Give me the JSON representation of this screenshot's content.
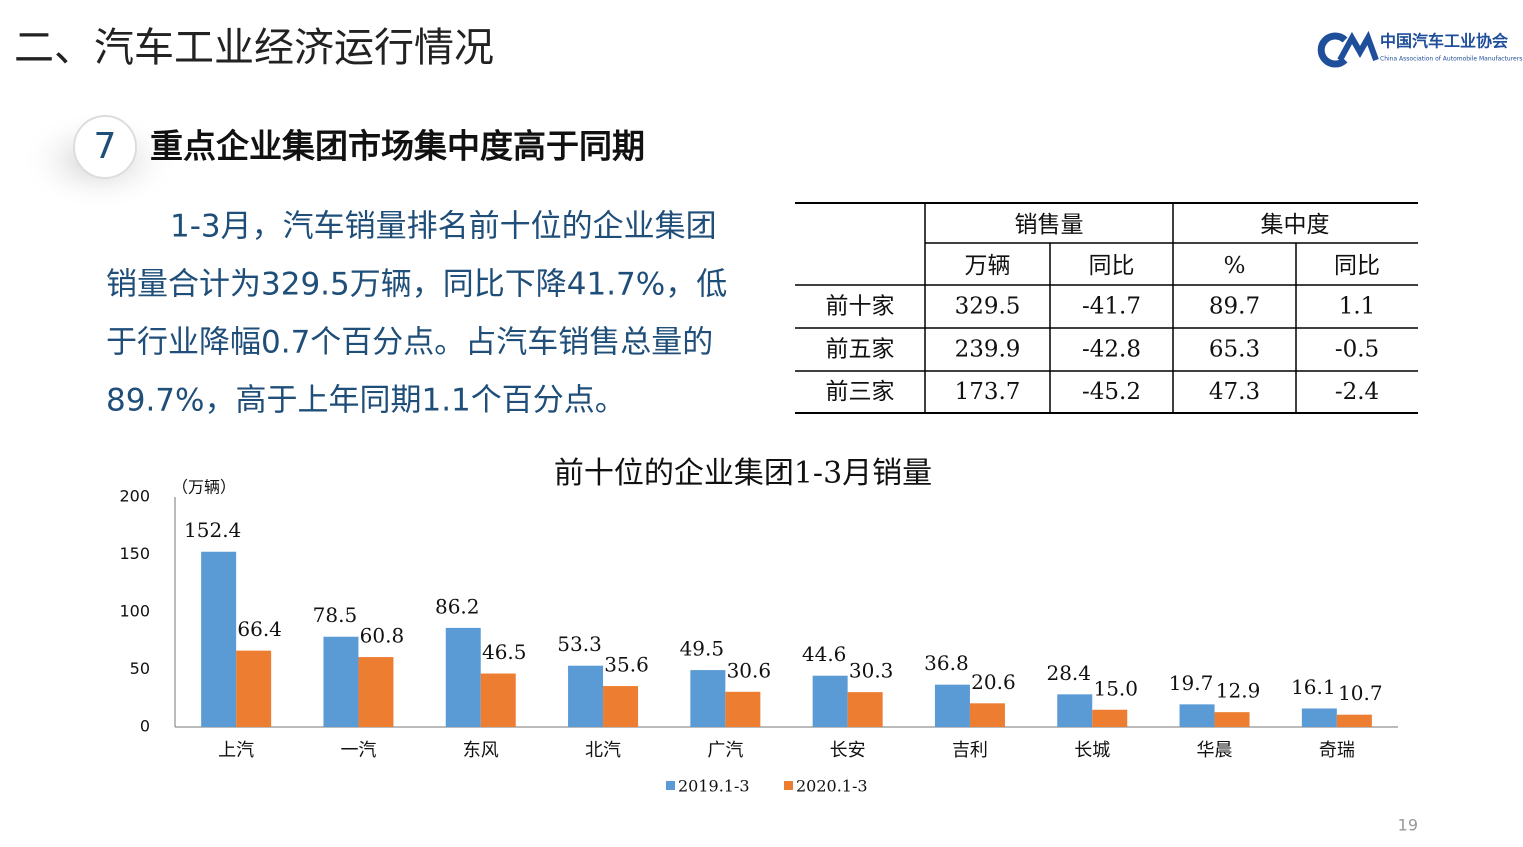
{
  "header": {
    "title": "二、汽车工业经济运行情况",
    "logo_name": "中国汽车工业协会",
    "logo_english": "China Association of Automobile Manufacturers"
  },
  "section": {
    "number": "7",
    "heading": "重点企业集团市场集中度高于同期"
  },
  "paragraph": {
    "lines": [
      "1-3月，汽车销量排名前十位的企业集团",
      "销量合计为329.5万辆，同比下降41.7%，低",
      "于行业降幅0.7个百分点。占汽车销售总量的",
      "89.7%，高于上年同期1.1个百分点。"
    ]
  },
  "table": {
    "group_headers": [
      "销售量",
      "集中度"
    ],
    "sub_headers": [
      "万辆",
      "同比",
      "%",
      "同比"
    ],
    "rows": [
      [
        "前十家",
        "329.5",
        "-41.7",
        "89.7",
        "1.1"
      ],
      [
        "前五家",
        "239.9",
        "-42.8",
        "65.3",
        "-0.5"
      ],
      [
        "前三家",
        "173.7",
        "-45.2",
        "47.3",
        "-2.4"
      ]
    ]
  },
  "chart_data": {
    "type": "bar",
    "title": "前十位的企业集团1-3月销量",
    "y_label": "（万辆）",
    "categories": [
      "上汽",
      "一汽",
      "东风",
      "北汽",
      "广汽",
      "长安",
      "吉利",
      "长城",
      "华晨",
      "奇瑞"
    ],
    "series": [
      {
        "name": "2019.1-3",
        "color": "#5b9bd5",
        "values": [
          152.4,
          78.5,
          86.2,
          53.3,
          49.5,
          44.6,
          36.8,
          28.4,
          19.7,
          16.1
        ]
      },
      {
        "name": "2020.1-3",
        "color": "#ed7d31",
        "values": [
          66.4,
          60.8,
          46.5,
          35.6,
          30.6,
          30.3,
          20.6,
          15.0,
          12.9,
          10.7
        ],
        "value_labels": [
          "66.4",
          "60.8",
          "46.5",
          "35.6",
          "30.6",
          "30.3",
          "20.6",
          "15.0",
          "12.9",
          "10.7"
        ]
      }
    ],
    "ylim": [
      0,
      200
    ],
    "yticks": [
      0,
      50,
      100,
      150,
      200
    ],
    "grid": false,
    "legend": "bottom"
  },
  "page_number": "19"
}
